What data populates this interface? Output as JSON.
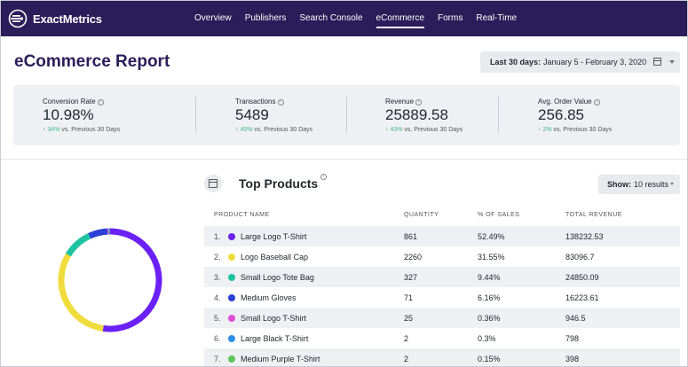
{
  "app": {
    "brand": "ExactMetrics",
    "nav": [
      "Overview",
      "Publishers",
      "Search Console",
      "eCommerce",
      "Forms",
      "Real-Time"
    ],
    "active_nav": "eCommerce"
  },
  "header": {
    "title": "eCommerce Report",
    "date_label": "Last 30 days:",
    "date_range": "January 5 - February 3, 2020"
  },
  "stats": [
    {
      "label": "Conversion Rate",
      "value": "10.98%",
      "change": "34%",
      "compare": "vs. Previous 30 Days"
    },
    {
      "label": "Transactions",
      "value": "5489",
      "change": "40%",
      "compare": "vs. Previous 30 Days"
    },
    {
      "label": "Revenue",
      "value": "25889.58",
      "change": "43%",
      "compare": "vs. Previous 30 Days"
    },
    {
      "label": "Avg. Order Value",
      "value": "256.85",
      "change": "2%",
      "compare": "vs. Previous 30 Days"
    }
  ],
  "top_products": {
    "title": "Top Products",
    "show_label": "Show:",
    "show_value": "10 results",
    "columns": [
      "PRODUCT NAME",
      "QUANTITY",
      "% OF SALES",
      "TOTAL REVENUE"
    ],
    "rows": [
      {
        "index": "1.",
        "name": "Large Logo T-Shirt",
        "quantity": "861",
        "percent": "52.49%",
        "revenue": "138232.53",
        "color": "#6b21f5"
      },
      {
        "index": "2.",
        "name": "Logo Baseball Cap",
        "quantity": "2260",
        "percent": "31.55%",
        "revenue": "83096.7",
        "color": "#f0dc3c"
      },
      {
        "index": "3.",
        "name": "Small Logo Tote Bag",
        "quantity": "327",
        "percent": "9.44%",
        "revenue": "24850.09",
        "color": "#1fc3a2"
      },
      {
        "index": "4.",
        "name": "Medium Gloves",
        "quantity": "71",
        "percent": "6.16%",
        "revenue": "16223.61",
        "color": "#2b3ed6"
      },
      {
        "index": "5.",
        "name": "Small Logo T-Shirt",
        "quantity": "25",
        "percent": "0.36%",
        "revenue": "946.5",
        "color": "#e04fd4"
      },
      {
        "index": "6.",
        "name": "Large Black T-Shirt",
        "quantity": "2",
        "percent": "0.3%",
        "revenue": "798",
        "color": "#2b8fe6"
      },
      {
        "index": "7.",
        "name": "Medium Purple T-Shirt",
        "quantity": "2",
        "percent": "0.15%",
        "revenue": "398",
        "color": "#5cc55a"
      }
    ]
  },
  "chart_data": {
    "type": "pie",
    "categories": [
      "Large Logo T-Shirt",
      "Logo Baseball Cap",
      "Small Logo Tote Bag",
      "Medium Gloves",
      "Small Logo T-Shirt",
      "Large Black T-Shirt",
      "Medium Purple T-Shirt"
    ],
    "values": [
      52.49,
      31.55,
      9.44,
      6.16,
      0.36,
      0.3,
      0.15
    ],
    "colors": [
      "#6b21f5",
      "#f0dc3c",
      "#1fc3a2",
      "#2b3ed6",
      "#e04fd4",
      "#2b8fe6",
      "#5cc55a"
    ],
    "style": "donut"
  }
}
